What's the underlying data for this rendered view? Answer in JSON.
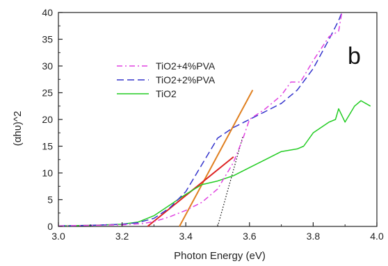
{
  "chart_data": {
    "type": "line",
    "panel_label": "b",
    "xlabel": "Photon Energy (eV)",
    "ylabel": "(αhυ)^2",
    "xlim": [
      3.0,
      4.0
    ],
    "ylim": [
      0,
      40
    ],
    "x_ticks": [
      "3.0",
      "3.2",
      "3.4",
      "3.6",
      "3.8",
      "4.0"
    ],
    "y_ticks": [
      "0",
      "5",
      "10",
      "15",
      "20",
      "25",
      "30",
      "35",
      "40"
    ],
    "legend_position": "upper-left",
    "series": [
      {
        "name": "TiO2+4%PVA",
        "color": "#e040e0",
        "style": "dash-dot",
        "x": [
          3.0,
          3.1,
          3.2,
          3.26,
          3.3,
          3.35,
          3.4,
          3.45,
          3.5,
          3.55,
          3.58,
          3.6,
          3.65,
          3.7,
          3.73,
          3.76,
          3.8,
          3.85,
          3.88,
          3.89
        ],
        "y": [
          0.1,
          0.2,
          0.3,
          0.5,
          0.9,
          1.8,
          3.0,
          4.5,
          7.0,
          12.0,
          16.5,
          20.0,
          22.0,
          24.5,
          27.0,
          27.0,
          31.0,
          35.5,
          36.5,
          40.0
        ]
      },
      {
        "name": "TiO2+2%PVA",
        "color": "#3333cc",
        "style": "dashed",
        "x": [
          3.0,
          3.1,
          3.2,
          3.25,
          3.3,
          3.35,
          3.4,
          3.45,
          3.5,
          3.55,
          3.6,
          3.65,
          3.7,
          3.75,
          3.8,
          3.85,
          3.88,
          3.89
        ],
        "y": [
          0.1,
          0.2,
          0.4,
          0.7,
          1.5,
          3.5,
          6.5,
          11.5,
          16.5,
          18.5,
          20.0,
          21.5,
          23.0,
          25.5,
          29.5,
          35.0,
          38.5,
          40.0
        ]
      },
      {
        "name": "TiO2",
        "color": "#22cc22",
        "style": "solid",
        "x": [
          3.0,
          3.1,
          3.2,
          3.25,
          3.3,
          3.35,
          3.4,
          3.45,
          3.5,
          3.55,
          3.6,
          3.65,
          3.7,
          3.75,
          3.77,
          3.8,
          3.85,
          3.87,
          3.88,
          3.9,
          3.93,
          3.95,
          3.98
        ],
        "y": [
          0.1,
          0.2,
          0.4,
          0.8,
          2.0,
          4.0,
          6.0,
          7.8,
          8.5,
          9.5,
          11.0,
          12.5,
          14.0,
          14.5,
          15.0,
          17.5,
          19.5,
          20.0,
          22.0,
          19.5,
          22.5,
          23.5,
          22.5
        ]
      }
    ],
    "fit_lines": [
      {
        "color": "#e08020",
        "style": "solid",
        "x": [
          3.38,
          3.61
        ],
        "y": [
          0,
          25.5
        ]
      },
      {
        "color": "#dd2222",
        "style": "solid",
        "x": [
          3.28,
          3.55
        ],
        "y": [
          0,
          13.0
        ]
      },
      {
        "color": "#111111",
        "style": "dotted",
        "x": [
          3.5,
          3.58
        ],
        "y": [
          0,
          17.0
        ]
      }
    ]
  }
}
